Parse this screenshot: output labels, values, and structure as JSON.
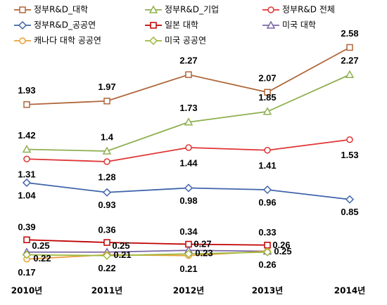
{
  "chart_data": {
    "type": "line",
    "categories": [
      "2010년",
      "2011년",
      "2012년",
      "2013년",
      "2014년"
    ],
    "ylim": [
      -0.08,
      2.96
    ],
    "series": [
      {
        "name": "정부R&D_대학",
        "color": "#b0663a",
        "marker": "square",
        "values": [
          1.93,
          1.97,
          2.27,
          2.07,
          2.58
        ]
      },
      {
        "name": "정부R&D_기업",
        "color": "#8fb050",
        "marker": "triangle",
        "values": [
          1.42,
          1.4,
          1.73,
          1.85,
          2.27
        ]
      },
      {
        "name": "정부R&D 전체",
        "color": "#e03434",
        "marker": "circle",
        "values": [
          1.31,
          1.28,
          1.44,
          1.41,
          1.53
        ]
      },
      {
        "name": "정부R&D_공공연",
        "color": "#3f64aa",
        "marker": "diamond",
        "values": [
          1.04,
          0.93,
          0.98,
          0.96,
          0.85
        ]
      },
      {
        "name": "일본 대학",
        "color": "#c00000",
        "marker": "square",
        "values": [
          0.39,
          0.36,
          0.34,
          0.33,
          null
        ]
      },
      {
        "name": "미국 대학",
        "color": "#7a67a6",
        "marker": "triangle",
        "values": [
          0.25,
          0.25,
          0.27,
          0.26,
          null
        ]
      },
      {
        "name": "캐나다 대학 공공연",
        "color": "#e8a03a",
        "marker": "circle",
        "values": [
          0.17,
          0.22,
          0.21,
          0.26,
          null
        ]
      },
      {
        "name": "미국 공공연",
        "color": "#9cb83c",
        "marker": "diamond",
        "values": [
          0.22,
          0.21,
          0.23,
          0.25,
          null
        ]
      }
    ]
  }
}
